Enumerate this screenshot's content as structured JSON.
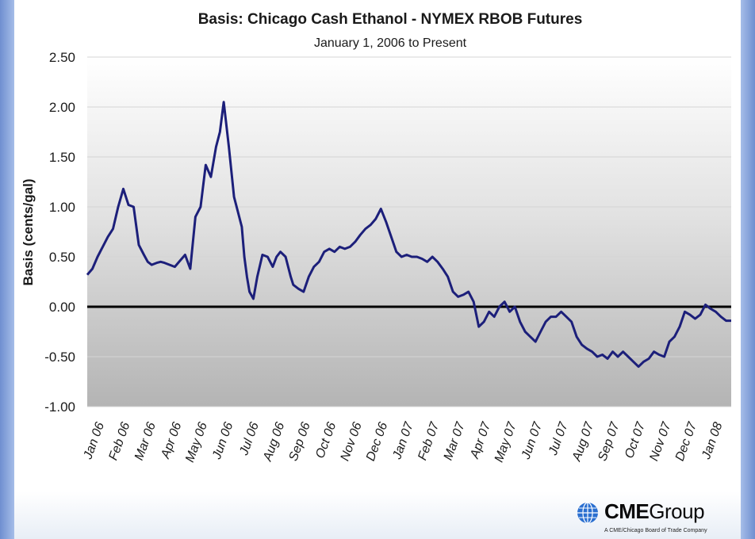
{
  "chart_data": {
    "type": "line",
    "title": "Basis: Chicago Cash Ethanol - NYMEX RBOB Futures",
    "subtitle": "January 1, 2006 to Present",
    "ylabel": "Basis (cents/gal)",
    "xlabel": "",
    "ylim": [
      -1.0,
      2.5
    ],
    "yticks": [
      "2.50",
      "2.00",
      "1.50",
      "1.00",
      "0.50",
      "0.00",
      "-0.50",
      "-1.00"
    ],
    "ytick_values": [
      2.5,
      2.0,
      1.5,
      1.0,
      0.5,
      0.0,
      -0.5,
      -1.0
    ],
    "categories": [
      "Jan 06",
      "Feb 06",
      "Mar 06",
      "Apr 06",
      "May 06",
      "Jun 06",
      "Jul 06",
      "Aug 06",
      "Sep 06",
      "Oct 06",
      "Nov 06",
      "Dec 06",
      "Jan 07",
      "Feb 07",
      "Mar 07",
      "Apr 07",
      "May 07",
      "Jun 07",
      "Jul 07",
      "Aug 07",
      "Sep 07",
      "Oct 07",
      "Nov 07",
      "Dec 07",
      "Jan 08"
    ],
    "grid": true,
    "zero_line": true,
    "series": [
      {
        "color": "#1c1f7a",
        "x": [
          0,
          0.2,
          0.4,
          0.6,
          0.8,
          1.0,
          1.2,
          1.4,
          1.6,
          1.8,
          2.0,
          2.2,
          2.35,
          2.5,
          2.7,
          2.85,
          3.0,
          3.2,
          3.4,
          3.6,
          3.8,
          4.0,
          4.2,
          4.4,
          4.6,
          4.8,
          5.0,
          5.15,
          5.3,
          5.5,
          5.7,
          5.85,
          6.0,
          6.1,
          6.2,
          6.3,
          6.45,
          6.6,
          6.8,
          7.0,
          7.2,
          7.35,
          7.5,
          7.7,
          7.9,
          8.0,
          8.2,
          8.4,
          8.6,
          8.8,
          9.0,
          9.2,
          9.4,
          9.6,
          9.8,
          10.0,
          10.2,
          10.4,
          10.6,
          10.8,
          11.0,
          11.2,
          11.4,
          11.6,
          11.8,
          12.0,
          12.2,
          12.4,
          12.6,
          12.8,
          13.0,
          13.2,
          13.4,
          13.6,
          13.8,
          14.0,
          14.2,
          14.4,
          14.6,
          14.8,
          15.0,
          15.2,
          15.4,
          15.6,
          15.8,
          16.0,
          16.2,
          16.4,
          16.6,
          16.8,
          17.0,
          17.2,
          17.4,
          17.6,
          17.8,
          18.0,
          18.2,
          18.4,
          18.6,
          18.8,
          19.0,
          19.2,
          19.4,
          19.6,
          19.8,
          20.0,
          20.2,
          20.4,
          20.6,
          20.8,
          21.0,
          21.2,
          21.4,
          21.6,
          21.8,
          22.0,
          22.2,
          22.4,
          22.6,
          22.8,
          23.0,
          23.2,
          23.4,
          23.6,
          23.8,
          24.0,
          24.2,
          24.4,
          24.6,
          24.8,
          25.0
        ],
        "y": [
          0.32,
          0.38,
          0.5,
          0.6,
          0.7,
          0.78,
          1.0,
          1.18,
          1.02,
          1.0,
          0.62,
          0.52,
          0.45,
          0.42,
          0.44,
          0.45,
          0.44,
          0.42,
          0.4,
          0.46,
          0.52,
          0.38,
          0.9,
          1.0,
          1.42,
          1.3,
          1.6,
          1.75,
          2.05,
          1.6,
          1.1,
          0.95,
          0.8,
          0.5,
          0.3,
          0.15,
          0.08,
          0.3,
          0.52,
          0.5,
          0.4,
          0.5,
          0.55,
          0.5,
          0.3,
          0.22,
          0.18,
          0.15,
          0.3,
          0.4,
          0.45,
          0.55,
          0.58,
          0.55,
          0.6,
          0.58,
          0.6,
          0.65,
          0.72,
          0.78,
          0.82,
          0.88,
          0.98,
          0.85,
          0.7,
          0.55,
          0.5,
          0.52,
          0.5,
          0.5,
          0.48,
          0.45,
          0.5,
          0.45,
          0.38,
          0.3,
          0.15,
          0.1,
          0.12,
          0.15,
          0.05,
          -0.2,
          -0.15,
          -0.05,
          -0.1,
          0.0,
          0.05,
          -0.05,
          0.0,
          -0.15,
          -0.25,
          -0.3,
          -0.35,
          -0.25,
          -0.15,
          -0.1,
          -0.1,
          -0.05,
          -0.1,
          -0.15,
          -0.3,
          -0.38,
          -0.42,
          -0.45,
          -0.5,
          -0.48,
          -0.52,
          -0.45,
          -0.5,
          -0.45,
          -0.5,
          -0.55,
          -0.6,
          -0.55,
          -0.52,
          -0.45,
          -0.48,
          -0.5,
          -0.35,
          -0.3,
          -0.2,
          -0.05,
          -0.08,
          -0.12,
          -0.08,
          0.02,
          -0.02,
          -0.05,
          -0.1,
          -0.14,
          -0.14
        ]
      }
    ]
  },
  "branding": {
    "logo_bold": "CME",
    "logo_text": "Group",
    "logo_sub": "A CME/Chicago Board of Trade Company",
    "logo_icon": "globe-icon"
  }
}
